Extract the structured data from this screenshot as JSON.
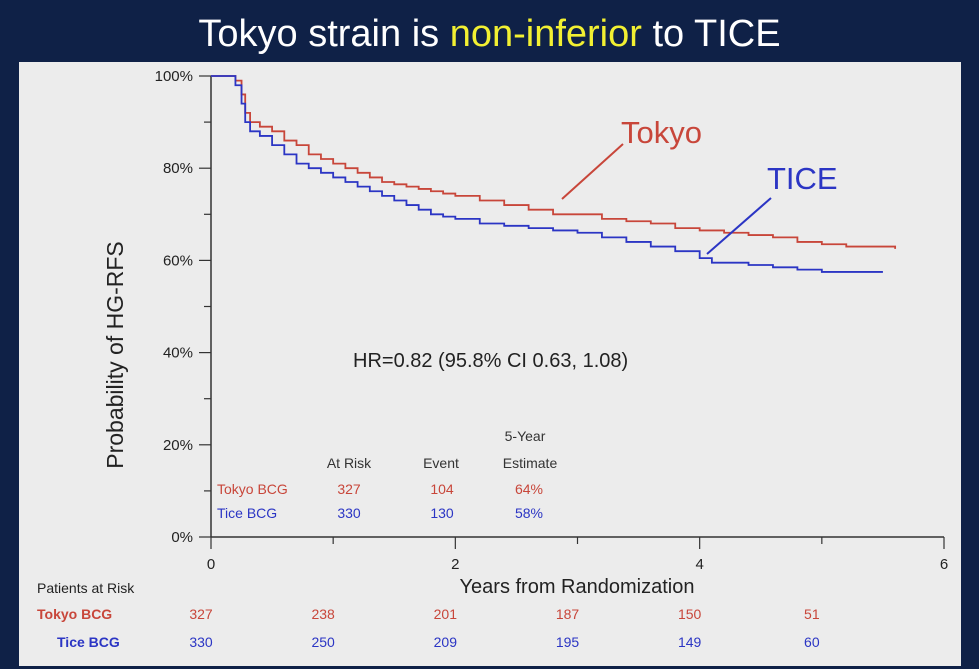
{
  "slide": {
    "title_pre": "Tokyo strain is ",
    "title_hl": "non-inferior",
    "title_post": " to TICE"
  },
  "colors": {
    "tokyo": "#c8463a",
    "tice": "#2b35c4",
    "title_highlight": "#f2f032",
    "background": "#0f2147",
    "panel": "#ececec"
  },
  "chart_data": {
    "type": "line",
    "style": "step",
    "xlabel": "Years from Randomization",
    "ylabel": "Probability of HG-RFS",
    "xlim": [
      0,
      6
    ],
    "ylim": [
      0,
      100
    ],
    "x_ticks": [
      0,
      2,
      4,
      6
    ],
    "y_ticks": [
      "0%",
      "20%",
      "40%",
      "60%",
      "80%",
      "100%"
    ],
    "grid": false,
    "series": [
      {
        "name": "Tokyo",
        "color": "#c8463a",
        "points": [
          [
            0,
            100
          ],
          [
            0.1,
            100
          ],
          [
            0.2,
            99
          ],
          [
            0.25,
            96
          ],
          [
            0.28,
            92
          ],
          [
            0.32,
            90
          ],
          [
            0.4,
            89
          ],
          [
            0.5,
            88
          ],
          [
            0.6,
            86
          ],
          [
            0.7,
            85
          ],
          [
            0.8,
            83
          ],
          [
            0.9,
            82
          ],
          [
            1.0,
            81
          ],
          [
            1.1,
            80
          ],
          [
            1.2,
            79
          ],
          [
            1.3,
            78
          ],
          [
            1.4,
            77
          ],
          [
            1.5,
            76.5
          ],
          [
            1.6,
            76
          ],
          [
            1.7,
            75.5
          ],
          [
            1.8,
            75
          ],
          [
            1.9,
            74.5
          ],
          [
            2.0,
            74
          ],
          [
            2.2,
            73
          ],
          [
            2.4,
            72
          ],
          [
            2.6,
            71
          ],
          [
            2.8,
            70
          ],
          [
            3.0,
            70
          ],
          [
            3.2,
            69
          ],
          [
            3.4,
            68.5
          ],
          [
            3.6,
            68
          ],
          [
            3.8,
            67
          ],
          [
            4.0,
            66.5
          ],
          [
            4.2,
            66
          ],
          [
            4.4,
            65.5
          ],
          [
            4.6,
            65
          ],
          [
            4.8,
            64
          ],
          [
            5.0,
            63.5
          ],
          [
            5.2,
            63
          ],
          [
            5.4,
            63
          ],
          [
            5.6,
            62.5
          ]
        ]
      },
      {
        "name": "TICE",
        "color": "#2b35c4",
        "points": [
          [
            0,
            100
          ],
          [
            0.1,
            100
          ],
          [
            0.2,
            98
          ],
          [
            0.25,
            94
          ],
          [
            0.28,
            90
          ],
          [
            0.32,
            88
          ],
          [
            0.4,
            87
          ],
          [
            0.5,
            85
          ],
          [
            0.6,
            83
          ],
          [
            0.7,
            81
          ],
          [
            0.8,
            80
          ],
          [
            0.9,
            79
          ],
          [
            1.0,
            78
          ],
          [
            1.1,
            77
          ],
          [
            1.2,
            76
          ],
          [
            1.3,
            75
          ],
          [
            1.4,
            74
          ],
          [
            1.5,
            73
          ],
          [
            1.6,
            72
          ],
          [
            1.7,
            71
          ],
          [
            1.8,
            70
          ],
          [
            1.9,
            69.5
          ],
          [
            2.0,
            69
          ],
          [
            2.2,
            68
          ],
          [
            2.4,
            67.5
          ],
          [
            2.6,
            67
          ],
          [
            2.8,
            66.5
          ],
          [
            3.0,
            66
          ],
          [
            3.2,
            65
          ],
          [
            3.4,
            64
          ],
          [
            3.6,
            63
          ],
          [
            3.8,
            62
          ],
          [
            4.0,
            60.5
          ],
          [
            4.1,
            59.5
          ],
          [
            4.2,
            59.5
          ],
          [
            4.4,
            59
          ],
          [
            4.6,
            58.5
          ],
          [
            4.8,
            58
          ],
          [
            5.0,
            57.5
          ],
          [
            5.2,
            57.5
          ],
          [
            5.4,
            57.5
          ],
          [
            5.5,
            57.5
          ]
        ]
      }
    ],
    "annotations": {
      "tokyo_label": "Tokyo",
      "tice_label": "TICE",
      "hr": "HR=0.82 (95.8% CI 0.63, 1.08)"
    },
    "summary_table": {
      "headers": [
        "At Risk",
        "Event",
        "5-Year",
        "Estimate"
      ],
      "rows": [
        {
          "label": "Tokyo BCG",
          "at_risk": "327",
          "event": "104",
          "estimate": "64%"
        },
        {
          "label": "Tice BCG",
          "at_risk": "330",
          "event": "130",
          "estimate": "58%"
        }
      ]
    },
    "risk_table": {
      "title": "Patients at Risk",
      "rows": [
        {
          "label": "Tokyo BCG",
          "values": [
            "327",
            "238",
            "201",
            "187",
            "150",
            "51"
          ]
        },
        {
          "label": "Tice BCG",
          "values": [
            "330",
            "250",
            "209",
            "195",
            "149",
            "60"
          ]
        }
      ]
    }
  }
}
